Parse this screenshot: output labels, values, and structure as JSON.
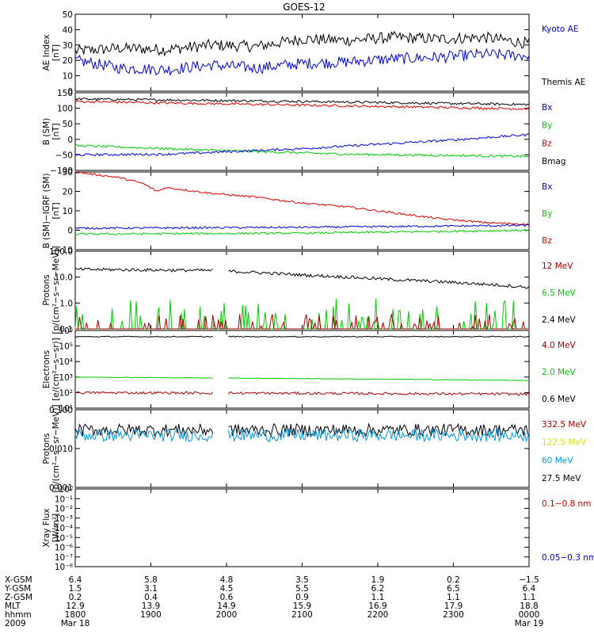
{
  "title": "GOES-12",
  "colors": {
    "black": "#000000",
    "blue": "#0000dd",
    "green": "#00cc00",
    "red": "#dd0000",
    "darkred": "#aa0000",
    "cyan": "#0099dd",
    "yellow": "#dddd00"
  },
  "chart_data": [
    {
      "type": "line",
      "panel": "ae",
      "ylabel": [
        "AE Index",
        "[nT]"
      ],
      "yscale": "linear",
      "ylim": [
        0,
        50
      ],
      "yticks": [
        "0",
        "10",
        "20",
        "30",
        "40",
        "50"
      ],
      "legend": [
        {
          "label": "Kyoto AE",
          "color": "blue"
        },
        {
          "label": "Themis AE",
          "color": "black"
        }
      ],
      "series": [
        {
          "name": "Themis AE",
          "color": "black",
          "gaps": [],
          "noise": 3,
          "knots": [
            [
              0,
              26
            ],
            [
              0.1,
              28
            ],
            [
              0.2,
              27
            ],
            [
              0.3,
              30
            ],
            [
              0.4,
              29
            ],
            [
              0.5,
              34
            ],
            [
              0.6,
              33
            ],
            [
              0.7,
              35
            ],
            [
              0.8,
              34
            ],
            [
              0.9,
              35
            ],
            [
              1,
              31
            ]
          ]
        },
        {
          "name": "Kyoto AE",
          "color": "blue",
          "gaps": [],
          "noise": 3,
          "knots": [
            [
              0,
              20
            ],
            [
              0.1,
              15
            ],
            [
              0.2,
              14
            ],
            [
              0.3,
              17
            ],
            [
              0.4,
              15
            ],
            [
              0.5,
              18
            ],
            [
              0.6,
              19
            ],
            [
              0.7,
              21
            ],
            [
              0.8,
              22
            ],
            [
              0.9,
              24
            ],
            [
              1,
              23
            ]
          ]
        }
      ]
    },
    {
      "type": "line",
      "panel": "bsm",
      "ylabel": [
        "B (SM)",
        "[nT]"
      ],
      "yscale": "linear",
      "ylim": [
        -100,
        150
      ],
      "yticks": [
        "150",
        "100",
        "50",
        "0",
        "−50",
        "−100"
      ],
      "legend": [
        {
          "label": "Bx",
          "color": "blue"
        },
        {
          "label": "By",
          "color": "green"
        },
        {
          "label": "Bz",
          "color": "red"
        },
        {
          "label": "Bmag",
          "color": "black"
        }
      ],
      "series": [
        {
          "name": "Bmag",
          "color": "black",
          "gaps": [],
          "noise": 0.6,
          "knots": [
            [
              0,
              130
            ],
            [
              0.5,
              122
            ],
            [
              1,
              112
            ]
          ]
        },
        {
          "name": "Bz",
          "color": "red",
          "gaps": [],
          "noise": 0.6,
          "knots": [
            [
              0,
              122
            ],
            [
              0.5,
              110
            ],
            [
              1,
              98
            ]
          ]
        },
        {
          "name": "By",
          "color": "green",
          "gaps": [],
          "noise": 0.6,
          "knots": [
            [
              0,
              -20
            ],
            [
              0.3,
              -35
            ],
            [
              0.6,
              -48
            ],
            [
              1,
              -55
            ]
          ]
        },
        {
          "name": "Bx",
          "color": "blue",
          "gaps": [],
          "noise": 0.6,
          "knots": [
            [
              0,
              -50
            ],
            [
              0.2,
              -48
            ],
            [
              0.5,
              -30
            ],
            [
              0.8,
              -5
            ],
            [
              1,
              15
            ]
          ]
        }
      ]
    },
    {
      "type": "line",
      "panel": "bsmigrf",
      "ylabel": [
        "B (SM)−IGRF (SM)",
        "[nT]"
      ],
      "yscale": "linear",
      "ylim": [
        -10,
        30
      ],
      "yticks": [
        "30",
        "20",
        "10",
        "0",
        "−10"
      ],
      "legend": [
        {
          "label": "Bx",
          "color": "blue"
        },
        {
          "label": "By",
          "color": "green"
        },
        {
          "label": "Bz",
          "color": "red"
        }
      ],
      "series": [
        {
          "name": "Bz",
          "color": "red",
          "gaps": [],
          "noise": 0.5,
          "knots": [
            [
              0,
              30
            ],
            [
              0.1,
              27
            ],
            [
              0.15,
              24
            ],
            [
              0.18,
              20
            ],
            [
              0.2,
              22
            ],
            [
              0.3,
              19
            ],
            [
              0.4,
              17
            ],
            [
              0.5,
              14
            ],
            [
              0.6,
              12
            ],
            [
              0.7,
              9
            ],
            [
              0.8,
              6
            ],
            [
              0.9,
              4
            ],
            [
              1,
              3
            ]
          ]
        },
        {
          "name": "Bx",
          "color": "blue",
          "gaps": [],
          "noise": 0.5,
          "knots": [
            [
              0,
              1
            ],
            [
              0.5,
              1.5
            ],
            [
              1,
              2.5
            ]
          ]
        },
        {
          "name": "By",
          "color": "green",
          "gaps": [],
          "noise": 0.5,
          "knots": [
            [
              0,
              -2
            ],
            [
              0.5,
              -1.5
            ],
            [
              1,
              0
            ]
          ]
        }
      ]
    },
    {
      "type": "line",
      "panel": "protons_high",
      "ylabel": [
        "Protons",
        "[p/(cm²−s−sr−MeV)]"
      ],
      "yscale": "log",
      "ylim": [
        0.1,
        100
      ],
      "yticks": [
        "100.0",
        "10.0",
        "1.0",
        "0.1"
      ],
      "legend": [
        {
          "label": "12 MeV",
          "color": "darkred"
        },
        {
          "label": "6.5 MeV",
          "color": "green"
        },
        {
          "label": "2.4 MeV",
          "color": "black"
        }
      ],
      "series": [
        {
          "name": "2.4 MeV",
          "color": "black",
          "gaps": [
            [
              0.305,
              0.335
            ]
          ],
          "noise": 0.06,
          "knots": [
            [
              0,
              20
            ],
            [
              0.3,
              18
            ],
            [
              0.5,
              12
            ],
            [
              0.7,
              8
            ],
            [
              0.85,
              6
            ],
            [
              1,
              4
            ]
          ]
        },
        {
          "name": "6.5 MeV",
          "color": "green",
          "gaps": [],
          "spiky": true,
          "noise": 0.4,
          "knots": [
            [
              0,
              0.15
            ],
            [
              1,
              0.15
            ]
          ]
        },
        {
          "name": "12 MeV",
          "color": "darkred",
          "gaps": [],
          "spiky": true,
          "noise": 0.2,
          "knots": [
            [
              0,
              0.12
            ],
            [
              1,
              0.12
            ]
          ]
        }
      ]
    },
    {
      "type": "line",
      "panel": "electrons",
      "ylabel": [
        "Electrons",
        "[e/(cm²−s−sr)]"
      ],
      "yscale": "log",
      "ylim": [
        10,
        1000000
      ],
      "yticks": [
        "10⁶",
        "10⁵",
        "10⁴",
        "10³",
        "10²",
        "10¹"
      ],
      "legend": [
        {
          "label": "4.0 MeV",
          "color": "darkred"
        },
        {
          "label": "2.0 MeV",
          "color": "green"
        },
        {
          "label": "0.6 MeV",
          "color": "black"
        }
      ],
      "series": [
        {
          "name": "0.6 MeV",
          "color": "black",
          "gaps": [
            [
              0.305,
              0.335
            ]
          ],
          "noise": 0.03,
          "knots": [
            [
              0,
              400000
            ],
            [
              1,
              400000
            ]
          ]
        },
        {
          "name": "2.0 MeV",
          "color": "green",
          "gaps": [
            [
              0.305,
              0.335
            ]
          ],
          "noise": 0.02,
          "knots": [
            [
              0,
              1000
            ],
            [
              0.5,
              800
            ],
            [
              1,
              600
            ]
          ]
        },
        {
          "name": "4.0 MeV",
          "color": "darkred",
          "gaps": [
            [
              0.305,
              0.335
            ]
          ],
          "noise": 0.08,
          "knots": [
            [
              0,
              100
            ],
            [
              1,
              80
            ]
          ]
        }
      ]
    },
    {
      "type": "line",
      "panel": "protons_low",
      "ylabel": [
        "Protons",
        "[p/(cm²−s−sr−MeV)]"
      ],
      "yscale": "log",
      "ylim": [
        0.001,
        0.1
      ],
      "yticks": [
        "0.100",
        "0.010",
        "0.001"
      ],
      "legend": [
        {
          "label": "332.5 MeV",
          "color": "darkred"
        },
        {
          "label": "122.5 MeV",
          "color": "yellow"
        },
        {
          "label": "60 MeV",
          "color": "cyan"
        },
        {
          "label": "27.5 MeV",
          "color": "black"
        }
      ],
      "series": [
        {
          "name": "27.5 MeV",
          "color": "black",
          "gaps": [
            [
              0.305,
              0.335
            ]
          ],
          "noise": 0.16,
          "knots": [
            [
              0,
              0.03
            ],
            [
              1,
              0.03
            ]
          ]
        },
        {
          "name": "60 MeV",
          "color": "cyan",
          "gaps": [
            [
              0.305,
              0.335
            ]
          ],
          "noise": 0.16,
          "knots": [
            [
              0,
              0.022
            ],
            [
              1,
              0.022
            ]
          ]
        }
      ]
    },
    {
      "type": "line",
      "panel": "xray",
      "ylabel": [
        "Xray Flux",
        "[W/m²]"
      ],
      "yscale": "log",
      "ylim": [
        1e-08,
        1
      ],
      "yticks": [
        "10⁰",
        "10⁻¹",
        "10⁻²",
        "10⁻³",
        "10⁻⁴",
        "10⁻⁵",
        "10⁻⁶",
        "10⁻⁷",
        "10⁻⁸"
      ],
      "legend": [
        {
          "label": "0.1−0.8 nm",
          "color": "red"
        },
        {
          "label": "0.05−0.3 nm",
          "color": "blue"
        }
      ],
      "series": []
    }
  ],
  "xaxis": {
    "row_labels": [
      "X-GSM",
      "Y-GSM",
      "Z-GSM",
      "MLT",
      "hhmm",
      "2009"
    ],
    "columns": [
      {
        "values": [
          "6.4",
          "1.5",
          "0.2",
          "12.9",
          "1800",
          "Mar 18"
        ]
      },
      {
        "values": [
          "5.8",
          "3.1",
          "0.4",
          "13.9",
          "1900",
          ""
        ]
      },
      {
        "values": [
          "4.8",
          "4.5",
          "0.6",
          "14.9",
          "2000",
          ""
        ]
      },
      {
        "values": [
          "3.5",
          "5.5",
          "0.9",
          "15.9",
          "2100",
          ""
        ]
      },
      {
        "values": [
          "1.9",
          "6.2",
          "1.1",
          "16.9",
          "2200",
          ""
        ]
      },
      {
        "values": [
          "0.2",
          "6.5",
          "1.1",
          "17.9",
          "2300",
          ""
        ]
      },
      {
        "values": [
          "−1.5",
          "6.4",
          "1.1",
          "18.8",
          "0000",
          "Mar 19"
        ]
      }
    ]
  }
}
